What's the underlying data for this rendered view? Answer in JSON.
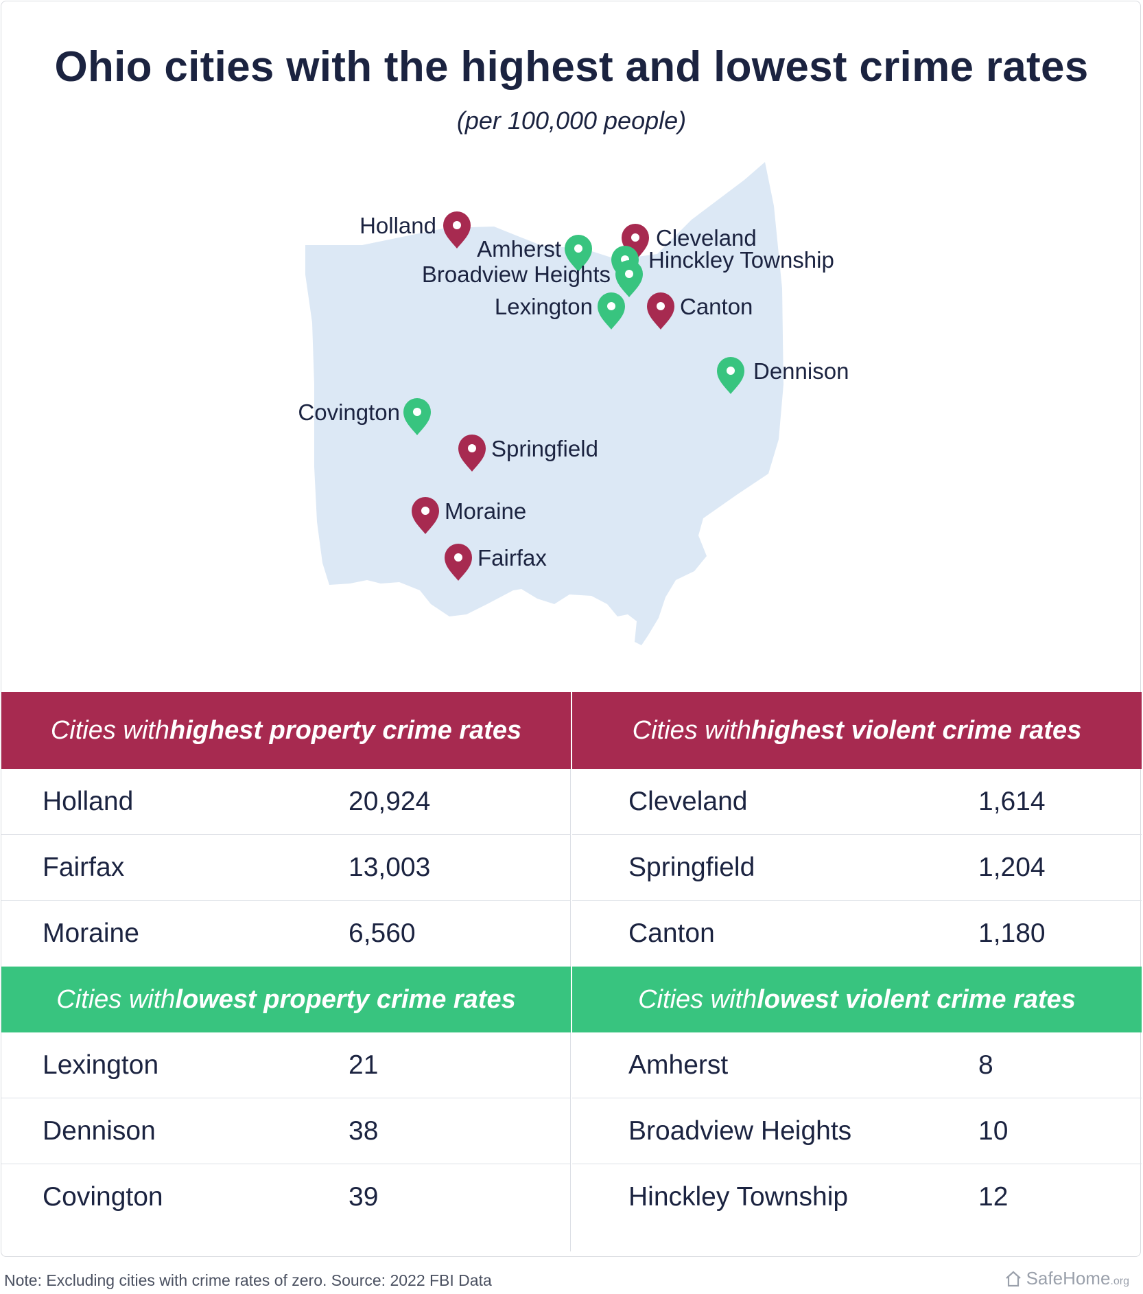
{
  "title": "Ohio cities with the highest and lowest crime rates",
  "subtitle": "(per 100,000 people)",
  "colors": {
    "high": "#a72a50",
    "low": "#38c47f",
    "state_fill": "#dce8f5",
    "text": "#1b2340"
  },
  "map": {
    "state": "Ohio",
    "markers": [
      {
        "name": "Holland",
        "type": "high"
      },
      {
        "name": "Amherst",
        "type": "low"
      },
      {
        "name": "Cleveland",
        "type": "high"
      },
      {
        "name": "Hinckley Township",
        "type": "low"
      },
      {
        "name": "Broadview Heights",
        "type": "low"
      },
      {
        "name": "Lexington",
        "type": "low"
      },
      {
        "name": "Canton",
        "type": "high"
      },
      {
        "name": "Dennison",
        "type": "low"
      },
      {
        "name": "Covington",
        "type": "low"
      },
      {
        "name": "Springfield",
        "type": "high"
      },
      {
        "name": "Moraine",
        "type": "high"
      },
      {
        "name": "Fairfax",
        "type": "high"
      }
    ]
  },
  "tables": {
    "highest_property": {
      "header_pre": "Cities with ",
      "header_bold": "highest property crime rates",
      "rows": [
        {
          "city": "Holland",
          "value": "20,924"
        },
        {
          "city": "Fairfax",
          "value": "13,003"
        },
        {
          "city": "Moraine",
          "value": "6,560"
        }
      ]
    },
    "highest_violent": {
      "header_pre": "Cities with ",
      "header_bold": "highest violent crime rates",
      "rows": [
        {
          "city": "Cleveland",
          "value": "1,614"
        },
        {
          "city": "Springfield",
          "value": "1,204"
        },
        {
          "city": "Canton",
          "value": "1,180"
        }
      ]
    },
    "lowest_property": {
      "header_pre": "Cities with ",
      "header_bold": "lowest property crime rates",
      "rows": [
        {
          "city": "Lexington",
          "value": "21"
        },
        {
          "city": "Dennison",
          "value": "38"
        },
        {
          "city": "Covington",
          "value": "39"
        }
      ]
    },
    "lowest_violent": {
      "header_pre": "Cities with ",
      "header_bold": "lowest violent crime rates",
      "rows": [
        {
          "city": "Amherst",
          "value": "8"
        },
        {
          "city": "Broadview Heights",
          "value": "10"
        },
        {
          "city": "Hinckley Township",
          "value": "12"
        }
      ]
    }
  },
  "footnote": "Note: Excluding cities with crime rates of zero. Source: 2022 FBI Data",
  "brand": {
    "name": "SafeHome",
    "suffix": ".org",
    "icon": "house-icon"
  }
}
